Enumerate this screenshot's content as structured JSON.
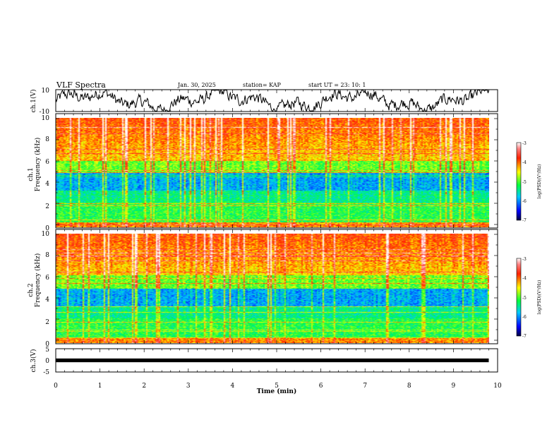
{
  "header": {
    "title": "VLF Spectra",
    "date": "Jan. 30, 2025",
    "station": "station= KAP",
    "start": "start UT =  23: 10: 1"
  },
  "chart_data": [
    {
      "type": "line",
      "name": "ch1-waveform",
      "ylabel": "ch.1(V)",
      "ylim": [
        -10,
        10
      ],
      "ytick_labels": [
        "10",
        "-10"
      ],
      "xlim": [
        0,
        10
      ]
    },
    {
      "type": "heatmap",
      "name": "ch1-spectrogram",
      "ylabel_top": "ch.1",
      "ylabel": "Frequency (kHz)",
      "ylim": [
        0,
        10
      ],
      "ytick_labels": [
        "0",
        "2",
        "4",
        "6",
        "8",
        "10"
      ],
      "xlim": [
        0,
        10
      ],
      "colorbar": {
        "label": "log(PSD)(V²/Hz)",
        "min": -7,
        "max": -3,
        "tick_labels": [
          "-3",
          "-4",
          "-5",
          "-6",
          "-7"
        ]
      }
    },
    {
      "type": "heatmap",
      "name": "ch2-spectrogram",
      "ylabel_top": "ch.2",
      "ylabel": "Frequency (kHz)",
      "ylim": [
        0,
        10
      ],
      "ytick_labels": [
        "0",
        "2",
        "4",
        "6",
        "8",
        "10"
      ],
      "xlim": [
        0,
        10
      ],
      "colorbar": {
        "label": "log(PSD)(V²/Hz)",
        "min": -7,
        "max": -3,
        "tick_labels": [
          "-3",
          "-4",
          "-5",
          "-6",
          "-7"
        ]
      }
    },
    {
      "type": "line",
      "name": "ch3-signal",
      "ylabel": "ch.3(V)",
      "ylim": [
        -5,
        5
      ],
      "ytick_labels": [
        "5",
        "0",
        "-5"
      ],
      "level": 0,
      "xlim": [
        0,
        10
      ],
      "xlabel": "Time (min)",
      "xtick_labels": [
        "0",
        "1",
        "2",
        "3",
        "4",
        "5",
        "6",
        "7",
        "8",
        "9",
        "10"
      ],
      "data_end": 9.8
    }
  ]
}
